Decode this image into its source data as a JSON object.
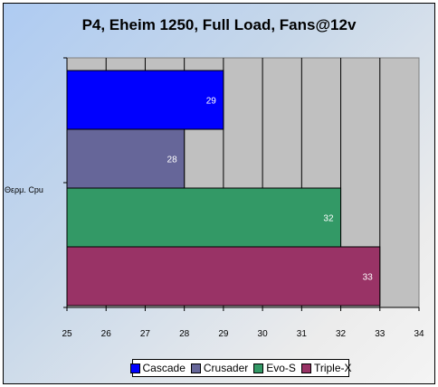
{
  "chart_data": {
    "type": "bar",
    "orientation": "horizontal",
    "title": "P4, Eheim 1250, Full Load, Fans@12v",
    "categories": [
      "Θερμ. Cpu"
    ],
    "series": [
      {
        "name": "Cascade",
        "values": [
          29
        ],
        "color": "#0000ff"
      },
      {
        "name": "Crusader",
        "values": [
          28
        ],
        "color": "#666699"
      },
      {
        "name": "Evo-S",
        "values": [
          32
        ],
        "color": "#339966"
      },
      {
        "name": "Triple-X",
        "values": [
          33
        ],
        "color": "#993366"
      }
    ],
    "xlim": [
      25,
      34
    ],
    "xticks": [
      "25",
      "26",
      "27",
      "28",
      "29",
      "30",
      "31",
      "32",
      "33",
      "34"
    ],
    "grid": true,
    "legend_position": "bottom",
    "plot_background": "#c0c0c0"
  }
}
